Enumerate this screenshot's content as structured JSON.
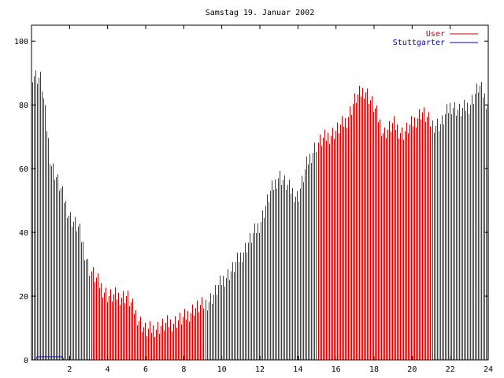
{
  "chart_data": {
    "type": "bar",
    "title": "Samstag 19. Januar 2002",
    "xlabel": "",
    "ylabel": "",
    "xlim": [
      0,
      24
    ],
    "ylim": [
      0,
      105
    ],
    "xticks": [
      2,
      4,
      6,
      8,
      10,
      12,
      14,
      16,
      18,
      20,
      22,
      24
    ],
    "yticks": [
      0,
      20,
      40,
      60,
      80,
      100
    ],
    "grid": false,
    "legend_position": "top-right",
    "series": [
      {
        "name": "User",
        "color": "#cc0000",
        "style": "impulses",
        "points": [
          [
            0.0,
            90
          ],
          [
            0.5,
            88
          ],
          [
            1.0,
            62
          ],
          [
            1.5,
            54
          ],
          [
            2.0,
            45
          ],
          [
            2.5,
            41
          ],
          [
            3.0,
            29
          ],
          [
            3.5,
            24
          ],
          [
            4.0,
            20
          ],
          [
            4.5,
            20
          ],
          [
            5.0,
            20
          ],
          [
            5.5,
            14
          ],
          [
            6.0,
            9
          ],
          [
            6.5,
            10
          ],
          [
            7.0,
            11
          ],
          [
            7.5,
            12
          ],
          [
            8.0,
            13
          ],
          [
            8.5,
            16
          ],
          [
            9.0,
            17
          ],
          [
            9.5,
            20
          ],
          [
            10.0,
            25
          ],
          [
            10.5,
            28
          ],
          [
            11.0,
            33
          ],
          [
            11.5,
            38
          ],
          [
            12.0,
            43
          ],
          [
            12.5,
            52
          ],
          [
            13.0,
            58
          ],
          [
            13.5,
            54
          ],
          [
            14.0,
            51
          ],
          [
            14.5,
            62
          ],
          [
            15.0,
            68
          ],
          [
            15.5,
            70
          ],
          [
            16.0,
            72
          ],
          [
            16.5,
            75
          ],
          [
            17.0,
            82
          ],
          [
            17.5,
            85
          ],
          [
            18.0,
            79
          ],
          [
            18.5,
            71
          ],
          [
            19.0,
            74
          ],
          [
            19.5,
            71
          ],
          [
            20.0,
            74
          ],
          [
            20.5,
            78
          ],
          [
            21.0,
            74
          ],
          [
            21.5,
            74
          ],
          [
            22.0,
            80
          ],
          [
            22.5,
            78
          ],
          [
            23.0,
            80
          ],
          [
            23.5,
            86
          ],
          [
            24.0,
            80
          ]
        ]
      },
      {
        "name": "Stuttgarter",
        "color": "#0000cc",
        "style": "lines",
        "points": [
          [
            0.0,
            0
          ],
          [
            0.2,
            0
          ],
          [
            0.3,
            1
          ],
          [
            1.6,
            1
          ],
          [
            1.7,
            0
          ],
          [
            24.0,
            0
          ]
        ]
      }
    ]
  }
}
